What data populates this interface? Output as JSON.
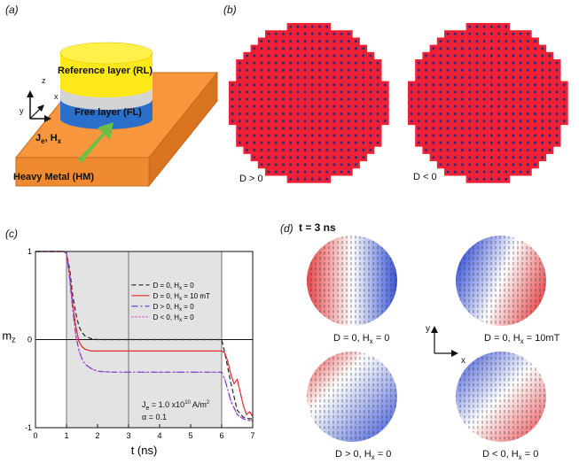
{
  "panel_a": {
    "label": "(a)",
    "reference_layer": "Reference layer (RL)",
    "free_layer": "Free layer (FL)",
    "heavy_metal": "Heavy Metal (HM)",
    "current_label": "J",
    "current_sub": "e",
    "field_label": ", H",
    "field_sub": "x",
    "axis_z": "z",
    "axis_x": "x",
    "axis_y": "y",
    "colors": {
      "reference": "#ffe81a",
      "spacer": "#d4d4d4",
      "free": "#2a6fc9",
      "hm": "#f7963d",
      "arrow": "#6abf45"
    }
  },
  "panel_b": {
    "label": "(b)",
    "left_caption": "D > 0",
    "right_caption": "D < 0",
    "colors": {
      "disk": "#ee2035",
      "dot": "#2b2e7a"
    }
  },
  "panel_c": {
    "label": "(c)",
    "annotation_line1_prefix": "J",
    "annotation_line1_sub": "e",
    "annotation_line1_rest": " = 1.0 x10",
    "annotation_line1_sup": "10",
    "annotation_line1_unit": " A/m",
    "annotation_line1_unit_sup": "2",
    "annotation_line2": "α = 0.1"
  },
  "chart_data": {
    "type": "line",
    "xlabel": "t (ns)",
    "ylabel": "m",
    "ylabel_sub": "z",
    "xlim": [
      0,
      7
    ],
    "ylim": [
      -1,
      1
    ],
    "xticks": [
      "0",
      "1",
      "2",
      "3",
      "4",
      "5",
      "6",
      "7"
    ],
    "yticks": [
      "-1",
      "0",
      "1"
    ],
    "shaded_regions": [
      [
        1,
        3
      ],
      [
        3,
        6
      ]
    ],
    "vertical_lines": [
      1,
      3,
      6
    ],
    "series": [
      {
        "name_prefix": "D = 0, H",
        "name_sub": "x",
        "name_suffix": " = 0",
        "color": "#222222",
        "dash": "5,3",
        "x": [
          0,
          0.9,
          1.0,
          1.1,
          1.2,
          1.3,
          1.4,
          1.5,
          1.6,
          1.8,
          2.0,
          2.5,
          3.0,
          6.0,
          6.1,
          6.3,
          6.5,
          6.7,
          6.9,
          7.0
        ],
        "y": [
          1,
          1,
          0.98,
          0.8,
          0.5,
          0.3,
          0.15,
          0.08,
          0.04,
          0.01,
          0.0,
          0.0,
          0.0,
          0.0,
          -0.15,
          -0.5,
          -0.8,
          -0.88,
          -0.9,
          -0.9
        ]
      },
      {
        "name_prefix": "D = 0, H",
        "name_sub": "x",
        "name_suffix": " = 10 mT",
        "color": "#e8242a",
        "dash": "",
        "x": [
          0,
          0.9,
          1.0,
          1.1,
          1.2,
          1.3,
          1.4,
          1.5,
          1.6,
          1.8,
          2.0,
          2.5,
          3.0,
          6.0,
          6.1,
          6.2,
          6.3,
          6.4,
          6.5,
          6.6,
          6.7,
          6.8,
          6.9,
          7.0
        ],
        "y": [
          1,
          1,
          0.98,
          0.75,
          0.4,
          0.15,
          -0.02,
          -0.08,
          -0.11,
          -0.13,
          -0.13,
          -0.13,
          -0.13,
          -0.13,
          -0.15,
          -0.25,
          -0.4,
          -0.5,
          -0.45,
          -0.6,
          -0.75,
          -0.85,
          -0.82,
          -0.87
        ]
      },
      {
        "name_prefix": "D > 0, H",
        "name_sub": "x",
        "name_suffix": " = 0",
        "color": "#3b3bd0",
        "dash": "7,3,2,3",
        "x": [
          0,
          0.9,
          1.0,
          1.1,
          1.2,
          1.3,
          1.4,
          1.5,
          1.6,
          1.8,
          2.0,
          2.5,
          3.0,
          6.0,
          6.1,
          6.3,
          6.5,
          6.7,
          6.9,
          7.0
        ],
        "y": [
          1,
          1,
          0.98,
          0.7,
          0.35,
          0.05,
          -0.12,
          -0.22,
          -0.28,
          -0.33,
          -0.36,
          -0.37,
          -0.37,
          -0.37,
          -0.45,
          -0.7,
          -0.85,
          -0.9,
          -0.92,
          -0.92
        ]
      },
      {
        "name_prefix": "D < 0, H",
        "name_sub": "x",
        "name_suffix": " = 0",
        "color": "#cc44cc",
        "dash": "2,2",
        "x": [
          0,
          0.9,
          1.0,
          1.1,
          1.2,
          1.3,
          1.4,
          1.5,
          1.6,
          1.8,
          2.0,
          2.5,
          3.0,
          6.0,
          6.1,
          6.3,
          6.5,
          6.7,
          6.9,
          7.0
        ],
        "y": [
          1,
          1,
          0.98,
          0.7,
          0.35,
          0.05,
          -0.12,
          -0.22,
          -0.28,
          -0.33,
          -0.36,
          -0.37,
          -0.37,
          -0.37,
          -0.45,
          -0.7,
          -0.85,
          -0.9,
          -0.92,
          -0.92
        ]
      }
    ]
  },
  "panel_d": {
    "label": "(d)",
    "time_label": "t = 3 ns",
    "axis_y": "y",
    "axis_x": "x",
    "disks": [
      {
        "caption_prefix": "D = 0, H",
        "caption_sub": "x",
        "caption_suffix": " = 0",
        "pattern": "quad"
      },
      {
        "caption_prefix": "D = 0, H",
        "caption_sub": "x",
        "caption_suffix": " = 10mT",
        "pattern": "quad-rot"
      },
      {
        "caption_prefix": "D > 0, H",
        "caption_sub": "x",
        "caption_suffix": " = 0",
        "pattern": "diag"
      },
      {
        "caption_prefix": "D < 0, H",
        "caption_sub": "x",
        "caption_suffix": " = 0",
        "pattern": "diag-rev"
      }
    ],
    "colors": {
      "red": "#e8464a",
      "blue": "#3a54d8",
      "white": "#ffffff"
    }
  }
}
